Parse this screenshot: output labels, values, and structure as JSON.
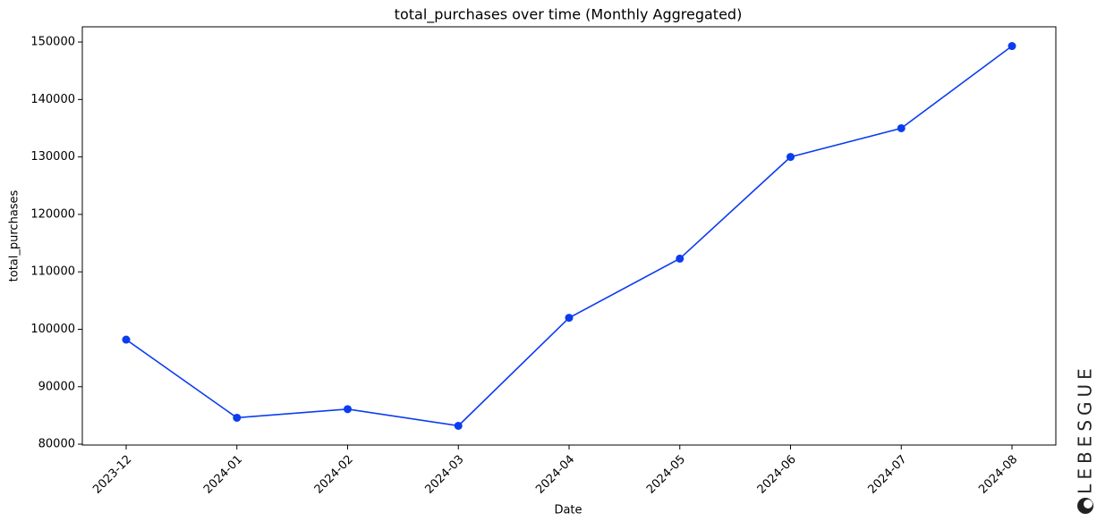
{
  "chart_data": {
    "type": "line",
    "title": "total_purchases over time (Monthly Aggregated)",
    "x_label": "Date",
    "y_label": "total_purchases",
    "categories": [
      "2023-12",
      "2024-01",
      "2024-02",
      "2024-03",
      "2024-04",
      "2024-05",
      "2024-06",
      "2024-07",
      "2024-08"
    ],
    "series": [
      {
        "name": "total_purchases",
        "color": "#0b3cf0",
        "values": [
          98200,
          84600,
          86100,
          83200,
          102000,
          112300,
          130000,
          135000,
          149300
        ]
      }
    ],
    "ylim": [
      79850,
      152650
    ],
    "yticks": [
      80000,
      90000,
      100000,
      110000,
      120000,
      130000,
      140000,
      150000
    ],
    "grid": false,
    "watermark": "LEBESGUE"
  }
}
